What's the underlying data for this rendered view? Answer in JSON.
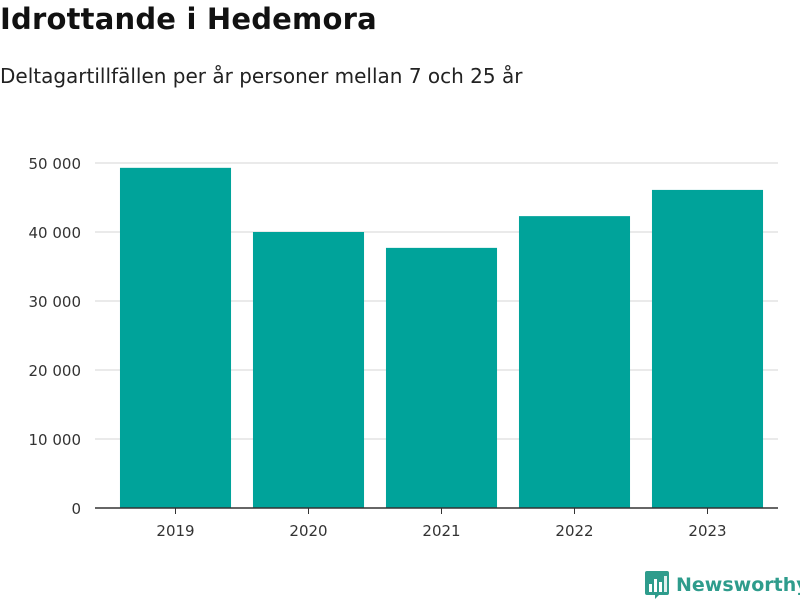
{
  "header": {
    "title": "Idrottande i Hedemora",
    "subtitle": "Deltagartillfällen per år personer mellan 7 och 25 år"
  },
  "chart_data": {
    "type": "bar",
    "title": "Idrottande i Hedemora",
    "subtitle": "Deltagartillfällen per år personer mellan 7 och 25 år",
    "categories": [
      "2019",
      "2020",
      "2021",
      "2022",
      "2023"
    ],
    "values": [
      49300,
      40000,
      37700,
      42300,
      46100
    ],
    "ylim": [
      0,
      50000
    ],
    "yticks": [
      0,
      10000,
      20000,
      30000,
      40000,
      50000
    ],
    "ytick_labels": [
      "0",
      "10 000",
      "20 000",
      "30 000",
      "40 000",
      "50 000"
    ],
    "xlabel": "",
    "ylabel": "",
    "grid": true,
    "bar_color": "#00a39a",
    "grid_color": "#dddddd"
  },
  "brand": {
    "name": "Newsworthy",
    "icon": "bar-chart-bubble-icon",
    "color": "#2e9c8c"
  }
}
